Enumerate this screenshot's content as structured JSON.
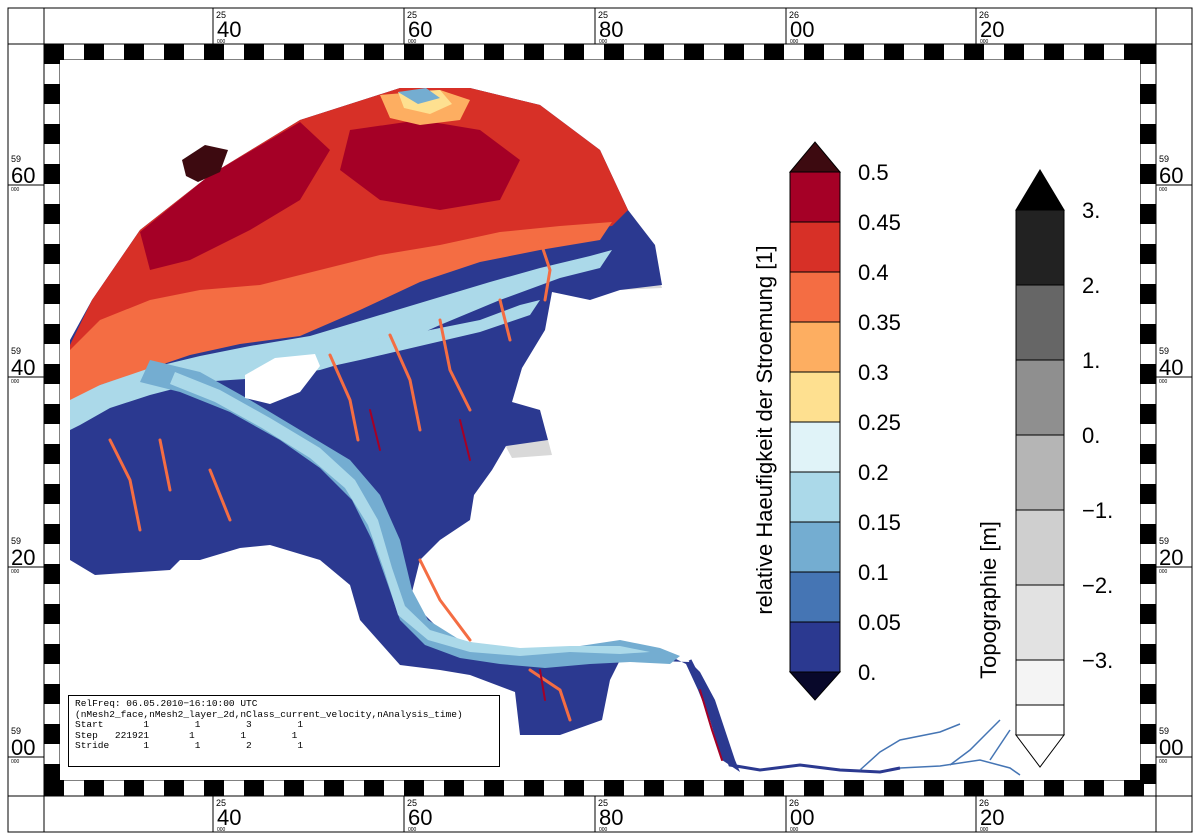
{
  "map": {
    "x_ticks": [
      {
        "major": "40",
        "minor": "25",
        "sub": "000"
      },
      {
        "major": "60",
        "minor": "25",
        "sub": "000"
      },
      {
        "major": "80",
        "minor": "25",
        "sub": "000"
      },
      {
        "major": "00",
        "minor": "26",
        "sub": "000"
      },
      {
        "major": "20",
        "minor": "26",
        "sub": "000"
      }
    ],
    "y_ticks": [
      {
        "major": "60",
        "minor": "59",
        "sub": "000"
      },
      {
        "major": "40",
        "minor": "59",
        "sub": "000"
      },
      {
        "major": "20",
        "minor": "59",
        "sub": "000"
      },
      {
        "major": "00",
        "minor": "59",
        "sub": "000"
      }
    ],
    "colors": {
      "low": "#2b3990",
      "c005": "#4575b4",
      "c010": "#74add1",
      "c015": "#abd9e9",
      "c020": "#e0f3f8",
      "c025": "#fee090",
      "c030": "#fdae61",
      "c035": "#f46d43",
      "c040": "#d73027",
      "c045": "#a50026",
      "over": "#3d0a10",
      "land": "#d9d9d9"
    }
  },
  "legend_flow": {
    "title": "relative Haeufigkeit der Stroemung [1]",
    "labels": [
      "0.5",
      "0.45",
      "0.4",
      "0.35",
      "0.3",
      "0.25",
      "0.2",
      "0.15",
      "0.1",
      "0.05",
      "0."
    ],
    "colors": [
      "#a50026",
      "#d73027",
      "#f46d43",
      "#fdae61",
      "#fee090",
      "#e0f3f8",
      "#abd9e9",
      "#74add1",
      "#4575b4",
      "#2b3990"
    ],
    "over_color": "#3d0a10",
    "under_color": "#08082a"
  },
  "legend_topo": {
    "title": "Topographie [m]",
    "labels": [
      "3.",
      "2.",
      "1.",
      "0.",
      "−1.",
      "−2.",
      "−3."
    ],
    "colors": [
      "#222222",
      "#666666",
      "#8f8f8f",
      "#b5b5b5",
      "#cfcfcf",
      "#e2e2e2",
      "#f4f4f4"
    ],
    "over_color": "#000000",
    "under_color": "#ffffff"
  },
  "info": {
    "line1": "RelFreq: 06.05.2010−16:10:00 UTC",
    "line2": "(nMesh2_face,nMesh2_layer_2d,nClass_current_velocity,nAnalysis_time)",
    "line3": "Start       1        1        3        1",
    "line4": "Step   221921       1        1        1",
    "line5": "Stride      1        1        2        1"
  }
}
